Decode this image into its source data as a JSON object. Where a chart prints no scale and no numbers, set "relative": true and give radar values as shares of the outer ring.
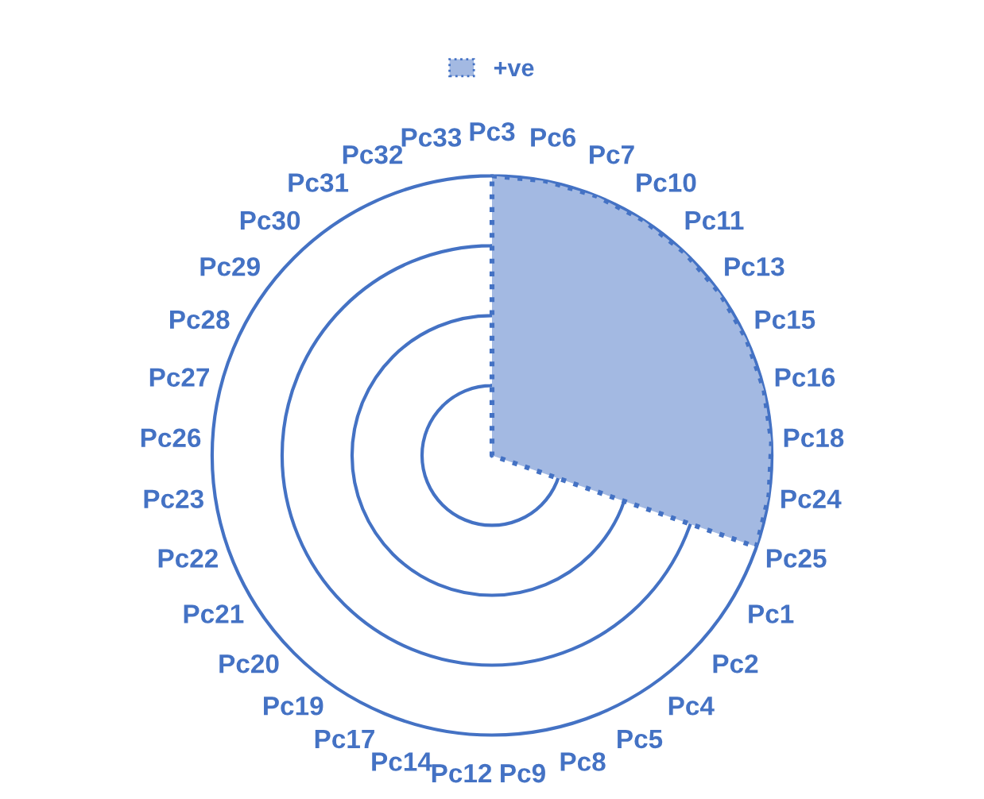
{
  "chart_data": {
    "type": "radar",
    "categories": [
      "Pc3",
      "Pc6",
      "Pc7",
      "Pc10",
      "Pc11",
      "Pc13",
      "Pc15",
      "Pc16",
      "Pc18",
      "Pc24",
      "Pc25",
      "Pc1",
      "Pc2",
      "Pc4",
      "Pc5",
      "Pc8",
      "Pc9",
      "Pc12",
      "Pc14",
      "Pc17",
      "Pc19",
      "Pc20",
      "Pc21",
      "Pc22",
      "Pc23",
      "Pc26",
      "Pc27",
      "Pc28",
      "Pc29",
      "Pc30",
      "Pc31",
      "Pc32",
      "Pc33"
    ],
    "series": [
      {
        "name": "+ve",
        "color": "#a3b9e2",
        "values": [
          1,
          1,
          1,
          1,
          1,
          1,
          1,
          1,
          1,
          1,
          1,
          0,
          0,
          0,
          0,
          0,
          0,
          0,
          0,
          0,
          0,
          0,
          0,
          0,
          0,
          0,
          0,
          0,
          0,
          0,
          0,
          0,
          0
        ]
      }
    ],
    "relative": true,
    "grid": true,
    "legend": "top",
    "line_style": "dotted",
    "marker": "none"
  }
}
